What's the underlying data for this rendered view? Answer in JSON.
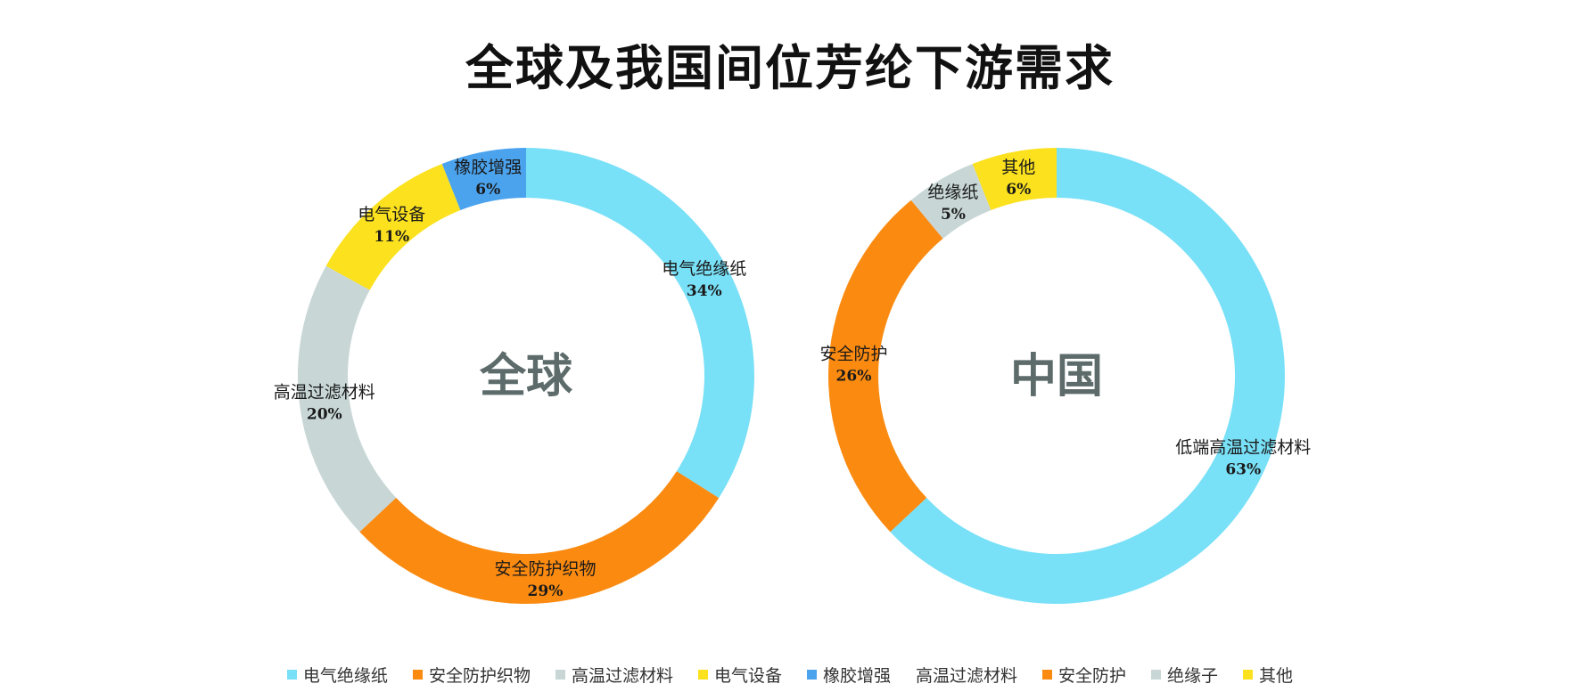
{
  "title": "全球及我国间位芳纶下游需求",
  "chart_data": [
    {
      "type": "pie",
      "center_label": "全球",
      "slices": [
        {
          "label": "电气绝缘纸",
          "value": 34,
          "pct": "34%",
          "color": "#78e0f7"
        },
        {
          "label": "安全防护织物",
          "value": 29,
          "pct": "29%",
          "color": "#fb8a10"
        },
        {
          "label": "高温过滤材料",
          "value": 20,
          "pct": "20%",
          "color": "#c8d6d6"
        },
        {
          "label": "电气设备",
          "value": 11,
          "pct": "11%",
          "color": "#fbe11e"
        },
        {
          "label": "橡胶增强",
          "value": 6,
          "pct": "6%",
          "color": "#4ba3ee"
        }
      ]
    },
    {
      "type": "pie",
      "center_label": "中国",
      "slices": [
        {
          "label": "低端高温过滤材料",
          "value": 63,
          "pct": "63%",
          "color": "#78e0f7"
        },
        {
          "label": "安全防护",
          "value": 26,
          "pct": "26%",
          "color": "#fb8a10"
        },
        {
          "label": "绝缘纸",
          "value": 5,
          "pct": "5%",
          "color": "#c8d6d6"
        },
        {
          "label": "其他",
          "value": 6,
          "pct": "6%",
          "color": "#fbe11e"
        }
      ]
    }
  ],
  "legend": [
    {
      "label": "电气绝缘纸",
      "color": "#78e0f7"
    },
    {
      "label": "安全防护织物",
      "color": "#fb8a10"
    },
    {
      "label": "高温过滤材料",
      "color": "#c8d6d6"
    },
    {
      "label": "电气设备",
      "color": "#fbe11e"
    },
    {
      "label": "橡胶增强",
      "color": "#4ba3ee"
    },
    {
      "label": "高温过滤材料",
      "color": ""
    },
    {
      "label": "安全防护",
      "color": "#fb8a10"
    },
    {
      "label": "绝缘子",
      "color": "#c8d6d6"
    },
    {
      "label": "其他",
      "color": "#fbe11e"
    }
  ]
}
